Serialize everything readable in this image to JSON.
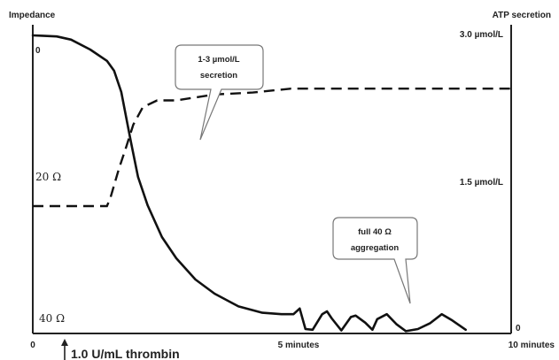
{
  "chart_data": {
    "type": "line",
    "left_axis": {
      "title": "Impedance",
      "ticks": [
        {
          "label": "0",
          "value": 0
        },
        {
          "label": "20 Ω",
          "value": 20
        },
        {
          "label": "40 Ω",
          "value": 40
        }
      ],
      "range": [
        0,
        42
      ]
    },
    "right_axis": {
      "title": "ATP secretion",
      "ticks": [
        {
          "label": "3.0 µmol/L",
          "value": 3.0
        },
        {
          "label": "1.5 µmol/L",
          "value": 1.5
        },
        {
          "label": "0",
          "value": 0
        }
      ],
      "range": [
        0,
        3.0
      ]
    },
    "x_axis": {
      "ticks": [
        {
          "label": "0",
          "value": 0
        },
        {
          "label": "5 minutes",
          "value": 5
        },
        {
          "label": "10 minutes",
          "value": 10
        }
      ],
      "range": [
        0,
        10
      ]
    },
    "series": [
      {
        "axis": "left",
        "style": "solid",
        "points": [
          [
            0,
            0
          ],
          [
            0.2,
            0.05
          ],
          [
            0.5,
            0.15
          ],
          [
            0.8,
            0.6
          ],
          [
            1.2,
            2.0
          ],
          [
            1.55,
            3.6
          ],
          [
            1.7,
            5.0
          ],
          [
            1.85,
            8.0
          ],
          [
            1.95,
            11.5
          ],
          [
            2.05,
            15.0
          ],
          [
            2.2,
            20.0
          ],
          [
            2.4,
            24.0
          ],
          [
            2.7,
            28.5
          ],
          [
            3.0,
            31.5
          ],
          [
            3.4,
            34.5
          ],
          [
            3.8,
            36.5
          ],
          [
            4.3,
            38.3
          ],
          [
            4.8,
            39.2
          ],
          [
            5.2,
            39.4
          ],
          [
            5.45,
            39.4
          ],
          [
            5.58,
            38.6
          ],
          [
            5.7,
            41.5
          ],
          [
            5.85,
            41.6
          ],
          [
            6.05,
            39.4
          ],
          [
            6.15,
            39.0
          ],
          [
            6.25,
            40.0
          ],
          [
            6.45,
            41.7
          ],
          [
            6.65,
            39.8
          ],
          [
            6.75,
            39.6
          ],
          [
            6.95,
            40.6
          ],
          [
            7.1,
            41.6
          ],
          [
            7.2,
            40.1
          ],
          [
            7.4,
            39.4
          ],
          [
            7.6,
            40.8
          ],
          [
            7.8,
            41.8
          ],
          [
            8.05,
            41.5
          ],
          [
            8.3,
            40.7
          ],
          [
            8.55,
            39.4
          ],
          [
            8.75,
            40.2
          ],
          [
            8.9,
            40.9
          ],
          [
            9.05,
            41.6
          ]
        ]
      },
      {
        "axis": "right",
        "style": "dashed",
        "points": [
          [
            0,
            1.22
          ],
          [
            1.55,
            1.22
          ],
          [
            1.62,
            1.3
          ],
          [
            1.8,
            1.6
          ],
          [
            1.95,
            1.82
          ],
          [
            2.1,
            2.05
          ],
          [
            2.3,
            2.23
          ],
          [
            2.6,
            2.3
          ],
          [
            3.0,
            2.3
          ],
          [
            3.8,
            2.36
          ],
          [
            4.6,
            2.38
          ],
          [
            5.4,
            2.42
          ],
          [
            6.5,
            2.42
          ],
          [
            8.0,
            2.42
          ],
          [
            10.0,
            2.42
          ]
        ]
      }
    ],
    "annotations": [
      {
        "text": [
          "1-3 µmol/L",
          "secretion"
        ]
      },
      {
        "text": [
          "full 40 Ω",
          "aggregation"
        ]
      },
      {
        "text": "1.0 U/mL thrombin"
      }
    ]
  }
}
